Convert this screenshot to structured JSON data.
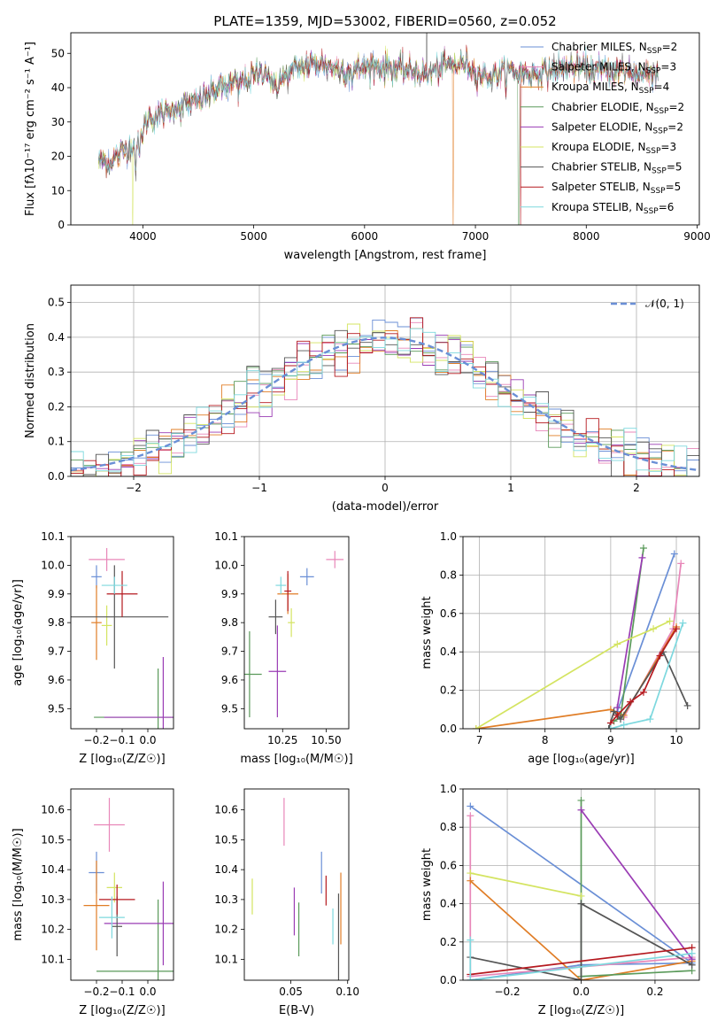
{
  "figure": {
    "title": "PLATE=1359, MJD=53002, FIBERID=0560, z=0.052"
  },
  "colors": {
    "series": [
      "#6a8fd6",
      "#e887b9",
      "#e07d26",
      "#5a9a5a",
      "#9a3cb4",
      "#d4e461",
      "#555555",
      "#b5191f",
      "#7dd8de"
    ],
    "gaussian": "#6a8fd6",
    "grid": "#b0b0b0"
  },
  "chart_data": [
    {
      "id": "spectrum",
      "type": "line",
      "title": "PLATE=1359, MJD=53002, FIBERID=0560, z=0.052",
      "xlabel": "wavelength [Angstrom, rest frame]",
      "ylabel": "Flux [fλ10⁻¹⁷ erg cm⁻² s⁻¹ A⁻¹]",
      "xlim": [
        3350,
        9020
      ],
      "ylim": [
        0,
        56
      ],
      "xticks": [
        4000,
        5000,
        6000,
        7000,
        8000,
        9000
      ],
      "yticks": [
        0,
        10,
        20,
        30,
        40,
        50
      ],
      "grid": false,
      "legend_position": "upper-right",
      "continuum": {
        "x": [
          3600,
          3700,
          3800,
          3950,
          4050,
          4150,
          4300,
          4500,
          4700,
          4900,
          5100,
          5200,
          5400,
          5600,
          5800,
          6000,
          6200,
          6400,
          6560,
          6700,
          6900,
          7100,
          7300,
          7500,
          7700,
          7900,
          8100,
          8300,
          8500,
          8650
        ],
        "y": [
          19,
          18,
          21,
          24,
          31,
          32,
          34,
          36,
          40,
          42,
          45,
          41,
          46,
          47,
          45,
          46,
          46,
          45,
          44,
          46,
          47,
          43,
          45,
          44,
          45,
          46,
          45,
          45,
          44,
          45
        ]
      },
      "series": [
        {
          "name": "Chabrier MILES, N_SSP=2"
        },
        {
          "name": "Salpeter MILES, N_SSP=3"
        },
        {
          "name": "Kroupa MILES, N_SSP=4"
        },
        {
          "name": "Chabrier ELODIE, N_SSP=2"
        },
        {
          "name": "Salpeter ELODIE, N_SSP=2"
        },
        {
          "name": "Kroupa ELODIE, N_SSP=3"
        },
        {
          "name": "Chabrier STELIB, N_SSP=5"
        },
        {
          "name": "Salpeter STELIB, N_SSP=5"
        },
        {
          "name": "Kroupa STELIB, N_SSP=6"
        }
      ]
    },
    {
      "id": "residuals",
      "type": "histogram",
      "xlabel": "(data-model)/error",
      "ylabel": "Normed distribution",
      "xlim": [
        -2.5,
        2.5
      ],
      "ylim": [
        0,
        0.55
      ],
      "xticks": [
        -2,
        -1,
        0,
        1,
        2
      ],
      "yticks": [
        0.0,
        0.1,
        0.2,
        0.3,
        0.4,
        0.5
      ],
      "grid": true,
      "legend": "𝒩(0, 1)",
      "legend_position": "upper-right",
      "bin_edges_start": -2.5,
      "bin_width": 0.1
    },
    {
      "id": "age_vs_Z",
      "type": "errorbar",
      "xlabel": "Z [log₁₀(Z/Z☉)]",
      "ylabel": "age  [log₁₀(age/yr)]",
      "xlim": [
        -0.3,
        0.1
      ],
      "ylim": [
        9.43,
        10.1
      ],
      "xticks": [
        -0.2,
        -0.1,
        0.0
      ],
      "yticks": [
        9.5,
        9.6,
        9.7,
        9.8,
        9.9,
        10.0,
        10.1
      ],
      "points": [
        {
          "x": -0.2,
          "xerr": 0.02,
          "y": 9.96,
          "yerr": 0.04
        },
        {
          "x": -0.16,
          "xerr": 0.07,
          "y": 10.02,
          "yerr": 0.04
        },
        {
          "x": -0.2,
          "xerr": 0.02,
          "y": 9.8,
          "yerr": 0.13
        },
        {
          "x": 0.04,
          "xerr": 0.25,
          "y": 9.47,
          "yerr": 0.17
        },
        {
          "x": 0.06,
          "xerr": 0.23,
          "y": 9.47,
          "yerr": 0.21
        },
        {
          "x": -0.16,
          "xerr": 0.02,
          "y": 9.79,
          "yerr": 0.07
        },
        {
          "x": -0.13,
          "xerr": 0.21,
          "y": 9.82,
          "yerr": 0.18
        },
        {
          "x": -0.1,
          "xerr": 0.06,
          "y": 9.9,
          "yerr": 0.08
        },
        {
          "x": -0.13,
          "xerr": 0.05,
          "y": 9.93,
          "yerr": 0.03
        }
      ]
    },
    {
      "id": "age_vs_mass",
      "type": "errorbar",
      "xlabel": "mass [log₁₀(M/M☉)]",
      "ylabel": "",
      "xlim": [
        10.03,
        10.63
      ],
      "ylim": [
        9.43,
        10.1
      ],
      "xticks": [
        10.25,
        10.5
      ],
      "yticks": [
        9.5,
        9.6,
        9.7,
        9.8,
        9.9,
        10.0,
        10.1
      ],
      "points": [
        {
          "x": 10.39,
          "xerr": 0.04,
          "y": 9.96,
          "yerr": 0.03
        },
        {
          "x": 10.55,
          "xerr": 0.05,
          "y": 10.02,
          "yerr": 0.03
        },
        {
          "x": 10.28,
          "xerr": 0.06,
          "y": 9.9,
          "yerr": 0.07
        },
        {
          "x": 10.06,
          "xerr": 0.07,
          "y": 9.62,
          "yerr": 0.15
        },
        {
          "x": 10.22,
          "xerr": 0.05,
          "y": 9.63,
          "yerr": 0.16
        },
        {
          "x": 10.3,
          "xerr": 0.02,
          "y": 9.8,
          "yerr": 0.05
        },
        {
          "x": 10.21,
          "xerr": 0.04,
          "y": 9.82,
          "yerr": 0.06
        },
        {
          "x": 10.28,
          "xerr": 0.02,
          "y": 9.91,
          "yerr": 0.07
        },
        {
          "x": 10.24,
          "xerr": 0.03,
          "y": 9.93,
          "yerr": 0.03
        }
      ]
    },
    {
      "id": "massweight_vs_age",
      "type": "line",
      "xlabel": "age  [log₁₀(age/yr)]",
      "ylabel": "mass weight",
      "xlim": [
        6.75,
        10.35
      ],
      "ylim": [
        0,
        1.0
      ],
      "xticks": [
        7,
        8,
        9,
        10
      ],
      "yticks": [
        0.0,
        0.2,
        0.4,
        0.6,
        0.8,
        1.0
      ],
      "grid": true,
      "series": [
        {
          "x": [
            9.1,
            9.97
          ],
          "y": [
            0.09,
            0.91
          ]
        },
        {
          "x": [
            9.2,
            9.95,
            10.07
          ],
          "y": [
            0.06,
            0.52,
            0.86
          ]
        },
        {
          "x": [
            6.95,
            9.0,
            9.2,
            10.0
          ],
          "y": [
            0.0,
            0.1,
            0.07,
            0.53
          ]
        },
        {
          "x": [
            9.05,
            9.15,
            9.5
          ],
          "y": [
            0.04,
            0.06,
            0.94
          ]
        },
        {
          "x": [
            9.1,
            9.48
          ],
          "y": [
            0.11,
            0.89
          ]
        },
        {
          "x": [
            6.95,
            9.1,
            9.65,
            9.9
          ],
          "y": [
            0.0,
            0.44,
            0.52,
            0.56
          ]
        },
        {
          "x": [
            8.97,
            9.05,
            9.15,
            9.8,
            10.17
          ],
          "y": [
            0.0,
            0.09,
            0.05,
            0.4,
            0.12
          ]
        },
        {
          "x": [
            9.0,
            9.1,
            9.3,
            9.5,
            9.75,
            10.0
          ],
          "y": [
            0.03,
            0.07,
            0.14,
            0.19,
            0.38,
            0.52
          ]
        },
        {
          "x": [
            9.0,
            9.2,
            9.6,
            10.1
          ],
          "y": [
            0.0,
            0.02,
            0.05,
            0.55
          ]
        }
      ]
    },
    {
      "id": "mass_vs_Z",
      "type": "errorbar",
      "xlabel": "Z [log₁₀(Z/Z☉)]",
      "ylabel": "mass [log₁₀(M/M☉)]",
      "xlim": [
        -0.3,
        0.1
      ],
      "ylim": [
        10.03,
        10.67
      ],
      "xticks": [
        -0.2,
        -0.1,
        0.0
      ],
      "yticks": [
        10.1,
        10.2,
        10.3,
        10.4,
        10.5,
        10.6
      ],
      "points": [
        {
          "x": -0.2,
          "xerr": 0.03,
          "y": 10.39,
          "yerr": 0.07
        },
        {
          "x": -0.15,
          "xerr": 0.06,
          "y": 10.55,
          "yerr": 0.09
        },
        {
          "x": -0.2,
          "xerr": 0.05,
          "y": 10.28,
          "yerr": 0.15
        },
        {
          "x": 0.04,
          "xerr": 0.24,
          "y": 10.06,
          "yerr": 0.24
        },
        {
          "x": 0.06,
          "xerr": 0.23,
          "y": 10.22,
          "yerr": 0.14
        },
        {
          "x": -0.13,
          "xerr": 0.03,
          "y": 10.34,
          "yerr": 0.05
        },
        {
          "x": -0.12,
          "xerr": 0.02,
          "y": 10.21,
          "yerr": 0.1
        },
        {
          "x": -0.12,
          "xerr": 0.07,
          "y": 10.3,
          "yerr": 0.05
        },
        {
          "x": -0.14,
          "xerr": 0.05,
          "y": 10.24,
          "yerr": 0.07
        }
      ]
    },
    {
      "id": "mass_vs_ebv",
      "type": "errorbar",
      "xlabel": "E(B-V)",
      "ylabel": "",
      "xlim": [
        0.009,
        0.101
      ],
      "ylim": [
        10.03,
        10.67
      ],
      "xticks": [
        0.05,
        0.1
      ],
      "yticks": [
        10.1,
        10.2,
        10.3,
        10.4,
        10.5,
        10.6
      ],
      "points": [
        {
          "x": 0.077,
          "yerr": 0.07,
          "y": 10.39
        },
        {
          "x": 0.044,
          "yerr": 0.08,
          "y": 10.56
        },
        {
          "x": 0.094,
          "yerr": 0.12,
          "y": 10.27
        },
        {
          "x": 0.057,
          "yerr": 0.09,
          "y": 10.2
        },
        {
          "x": 0.053,
          "yerr": 0.08,
          "y": 10.26
        },
        {
          "x": 0.016,
          "yerr": 0.06,
          "y": 10.31
        },
        {
          "x": 0.092,
          "yerr": 0.16,
          "y": 10.16
        },
        {
          "x": 0.081,
          "yerr": 0.05,
          "y": 10.33
        },
        {
          "x": 0.087,
          "yerr": 0.06,
          "y": 10.21
        }
      ]
    },
    {
      "id": "massweight_vs_Z",
      "type": "line",
      "xlabel": "Z [log₁₀(Z/Z☉)]",
      "ylabel": "mass weight",
      "xlim": [
        -0.32,
        0.32
      ],
      "ylim": [
        0,
        1.0
      ],
      "xticks": [
        -0.2,
        0.0,
        0.2
      ],
      "yticks": [
        0.0,
        0.2,
        0.4,
        0.6,
        0.8,
        1.0
      ],
      "grid": true,
      "series": [
        {
          "x": [
            -0.3,
            0.3,
            0.0,
            -0.3
          ],
          "y": [
            0.91,
            0.09,
            0.08,
            0.0
          ]
        },
        {
          "x": [
            -0.3,
            -0.3,
            0.3
          ],
          "y": [
            0.86,
            0.02,
            0.12
          ]
        },
        {
          "x": [
            -0.3,
            0.0,
            0.3
          ],
          "y": [
            0.52,
            0.0,
            0.1
          ]
        },
        {
          "x": [
            0.0,
            0.0,
            0.3
          ],
          "y": [
            0.94,
            0.02,
            0.05
          ]
        },
        {
          "x": [
            0.0,
            0.3
          ],
          "y": [
            0.89,
            0.11
          ]
        },
        {
          "x": [
            -0.3,
            0.0
          ],
          "y": [
            0.56,
            0.44
          ]
        },
        {
          "x": [
            -0.3,
            0.0,
            0.0,
            0.3
          ],
          "y": [
            0.12,
            0.0,
            0.4,
            0.08
          ]
        },
        {
          "x": [
            -0.3,
            0.3
          ],
          "y": [
            0.03,
            0.17
          ]
        },
        {
          "x": [
            -0.3,
            -0.3,
            0.3
          ],
          "y": [
            0.21,
            0.0,
            0.14
          ]
        }
      ]
    }
  ]
}
